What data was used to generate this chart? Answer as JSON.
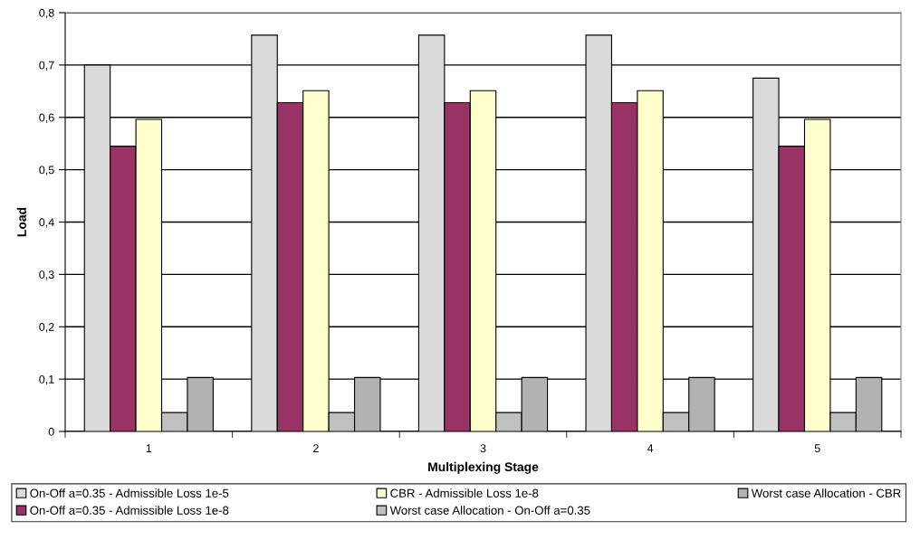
{
  "chart_data": {
    "type": "bar",
    "xlabel": "Multiplexing Stage",
    "ylabel": "Load",
    "categories": [
      "1",
      "2",
      "3",
      "4",
      "5"
    ],
    "series": [
      {
        "name": "On-Off a=0.35 - Admissible Loss 1e-5",
        "color": "#d9d9d9",
        "values": [
          0.7,
          0.757,
          0.757,
          0.757,
          0.675
        ]
      },
      {
        "name": "On-Off a=0.35 - Admissible Loss 1e-8",
        "color": "#993366",
        "values": [
          0.545,
          0.628,
          0.628,
          0.628,
          0.545
        ]
      },
      {
        "name": "CBR - Admissible Loss 1e-8",
        "color": "#ffffcc",
        "values": [
          0.596,
          0.651,
          0.651,
          0.651,
          0.596
        ]
      },
      {
        "name": "Worst case Allocation - On-Off a=0.35",
        "color": "#c0c0c0",
        "values": [
          0.036,
          0.036,
          0.036,
          0.036,
          0.036
        ]
      },
      {
        "name": "Worst case Allocation - CBR",
        "color": "#b2b2b2",
        "values": [
          0.103,
          0.103,
          0.103,
          0.103,
          0.103
        ]
      }
    ],
    "ylim": [
      0,
      0.8
    ],
    "yticks": [
      {
        "value": 0,
        "label": "0"
      },
      {
        "value": 0.1,
        "label": "0,1"
      },
      {
        "value": 0.2,
        "label": "0,2"
      },
      {
        "value": 0.3,
        "label": "0,3"
      },
      {
        "value": 0.4,
        "label": "0,4"
      },
      {
        "value": 0.5,
        "label": "0,5"
      },
      {
        "value": 0.6,
        "label": "0,6"
      },
      {
        "value": 0.7,
        "label": "0,7"
      },
      {
        "value": 0.8,
        "label": "0,8"
      }
    ],
    "grid": "y",
    "legend": "bottom"
  }
}
